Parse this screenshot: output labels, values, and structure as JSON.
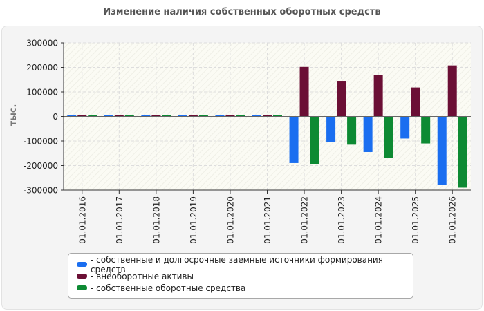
{
  "title": "Изменение наличия собственных оборотных средств",
  "chart_data": {
    "type": "bar",
    "title": "Изменение наличия собственных оборотных средств",
    "xlabel": "",
    "ylabel": "тыс.",
    "categories": [
      "01.01.2016",
      "01.01.2017",
      "01.01.2018",
      "01.01.2019",
      "01.01.2020",
      "01.01.2021",
      "01.01.2022",
      "01.01.2023",
      "01.01.2024",
      "01.01.2025",
      "01.01.2026"
    ],
    "series": [
      {
        "name": "- собственные и долгосрочные заемные источники формирования средств",
        "color": "#1a6ef0",
        "values": [
          0,
          0,
          0,
          0,
          0,
          0,
          -190000,
          -105000,
          -145000,
          -90000,
          -280000
        ]
      },
      {
        "name": "- внеоборотные активы",
        "color": "#6b0f35",
        "values": [
          0,
          0,
          0,
          0,
          0,
          0,
          202000,
          145000,
          170000,
          118000,
          208000
        ]
      },
      {
        "name": "- собственные оборотные средства",
        "color": "#0d8a33",
        "values": [
          0,
          0,
          0,
          0,
          0,
          0,
          -195000,
          -115000,
          -170000,
          -110000,
          -290000
        ]
      }
    ],
    "yticks": [
      "300000",
      "200000",
      "100000",
      "0",
      "-100000",
      "-200000",
      "-300000"
    ],
    "ylim": [
      -300000,
      300000
    ],
    "grid": true,
    "legend_position": "bottom"
  }
}
